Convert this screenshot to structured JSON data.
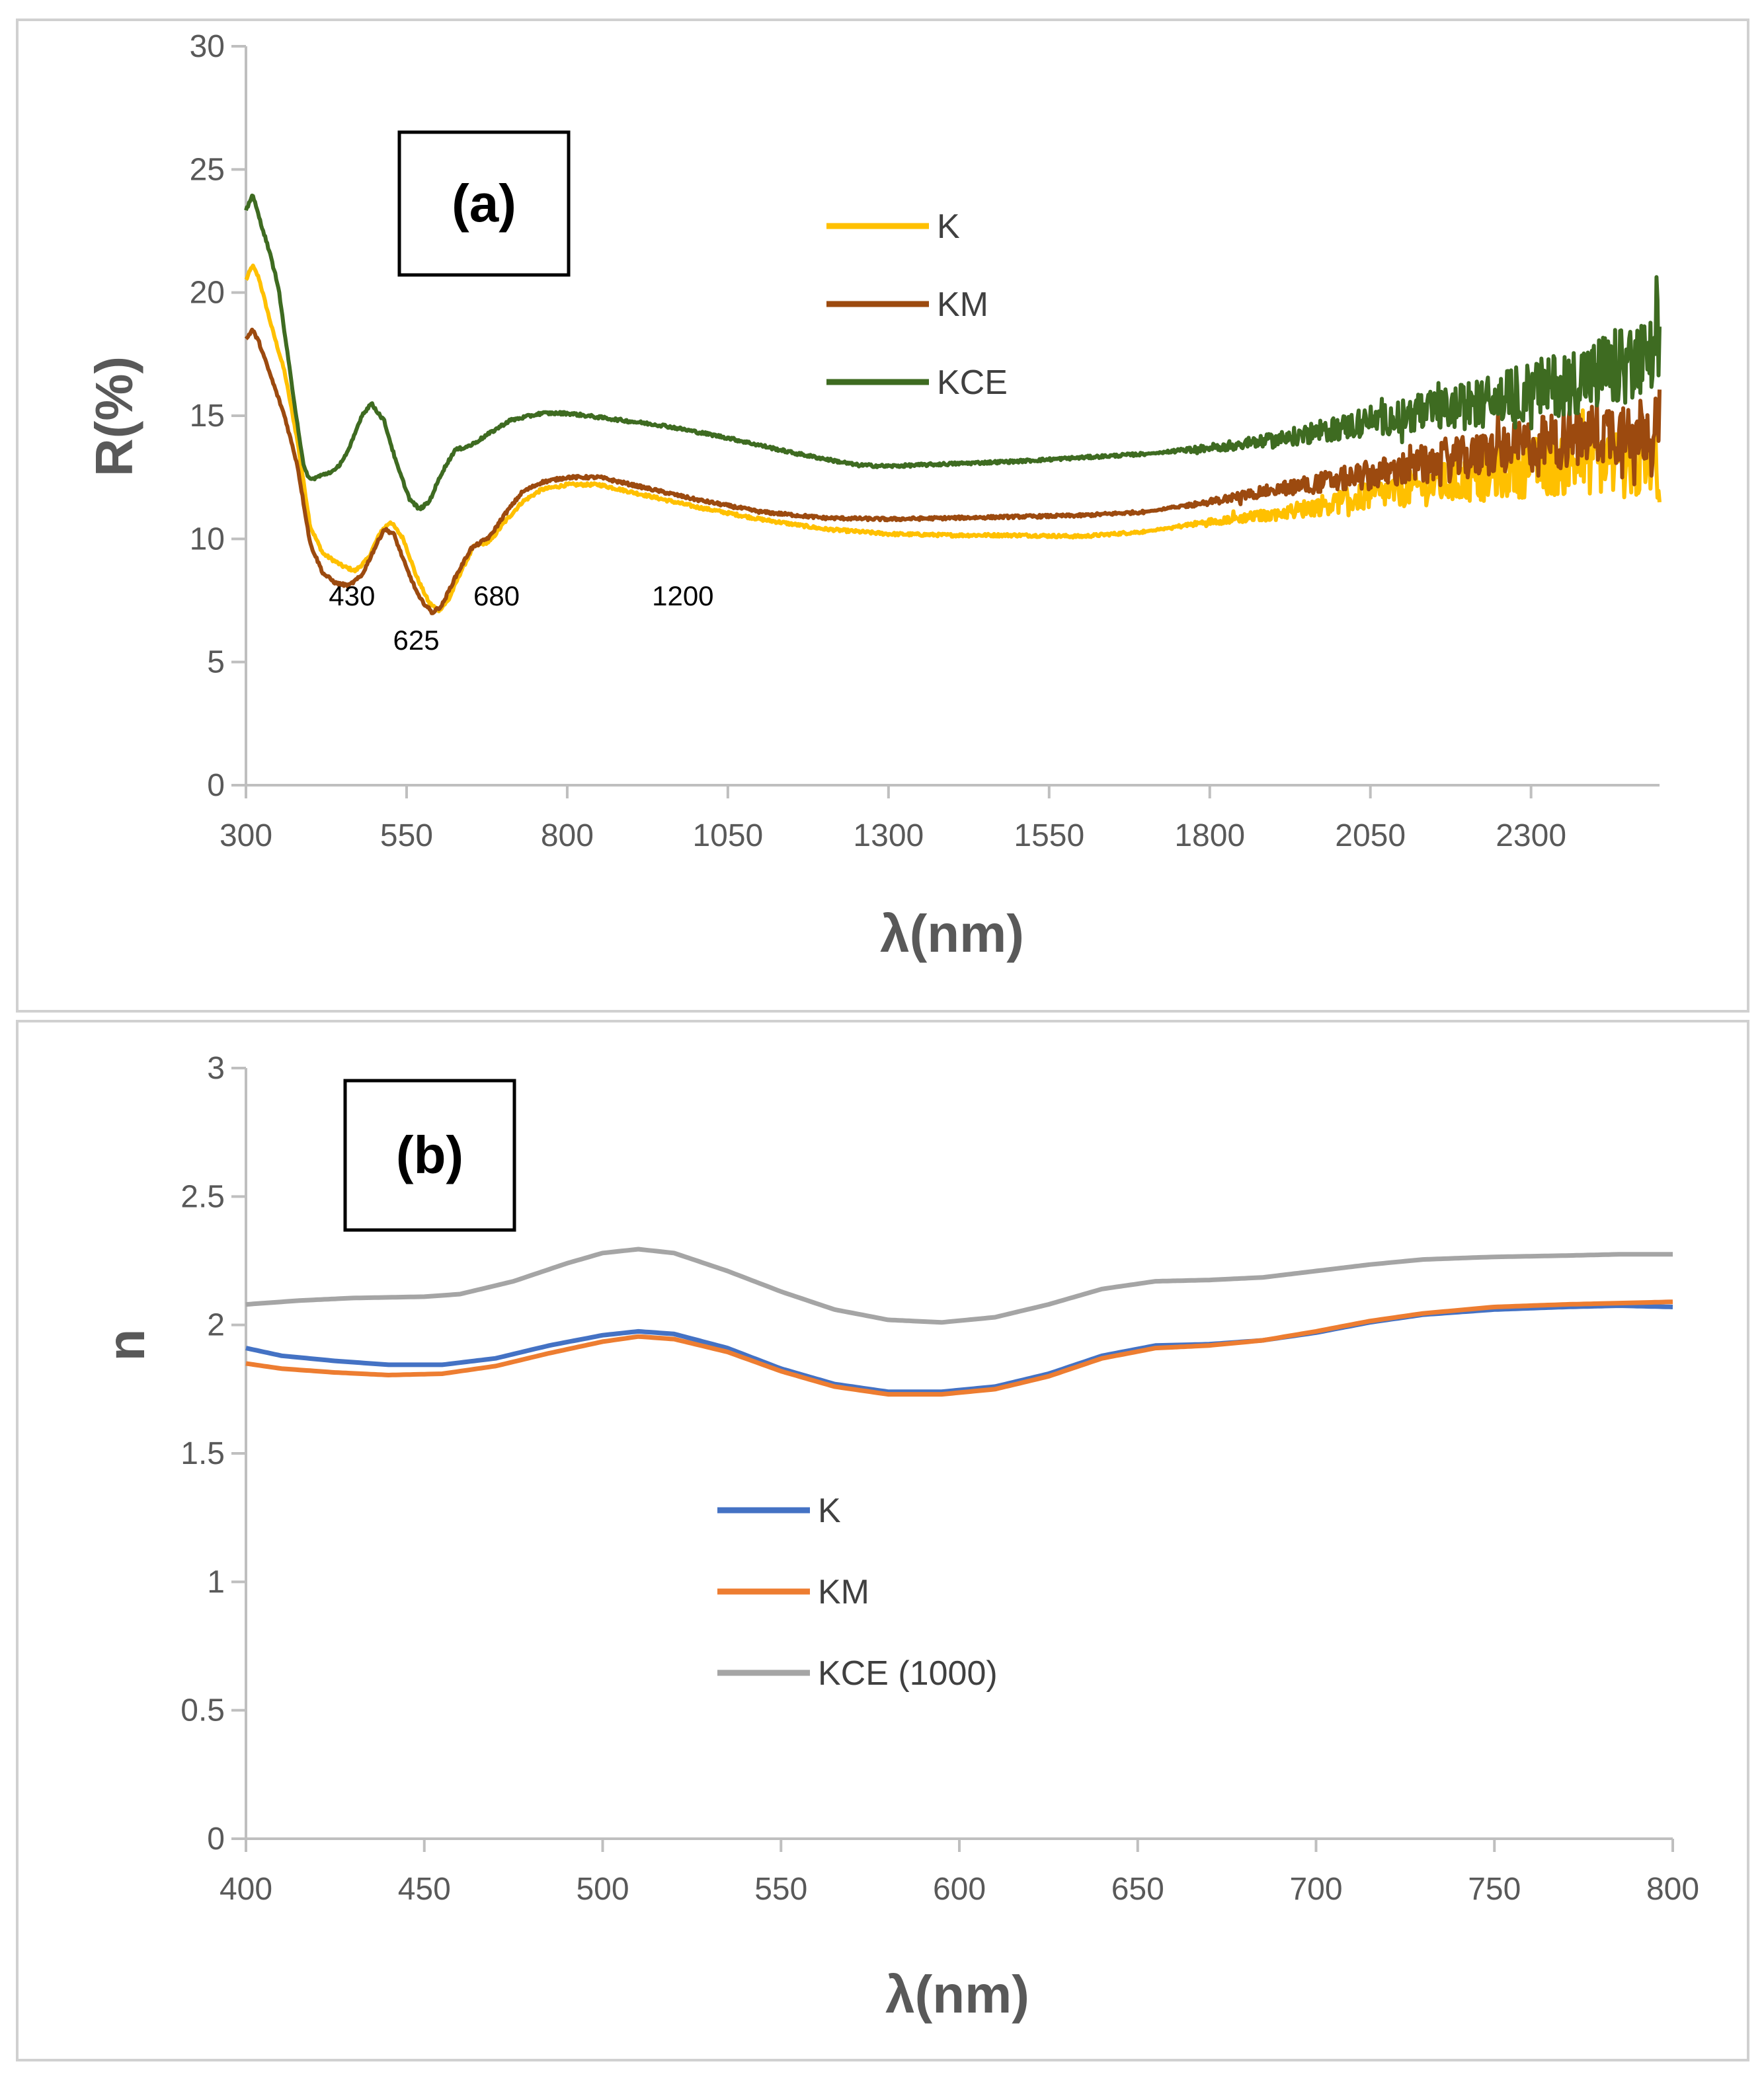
{
  "colors": {
    "K_a": "#FFC000",
    "KM_a": "#9C4A0F",
    "KCE_a": "#3E6B21",
    "K_b": "#4472C4",
    "KM_b": "#ED7D31",
    "KCE_b": "#A5A5A5",
    "axis": "#BFBFBF",
    "text": "#595959"
  },
  "chart_data": [
    {
      "type": "line",
      "panel_label": "(a)",
      "xlabel": "λ(nm)",
      "ylabel": "R(%)",
      "xlim": [
        300,
        2500
      ],
      "ylim": [
        0,
        30
      ],
      "xticks": [
        300,
        550,
        800,
        1050,
        1300,
        1550,
        1800,
        2050,
        2300
      ],
      "yticks": [
        0,
        5,
        10,
        15,
        20,
        25,
        30
      ],
      "grid": false,
      "legend_position": "top-right",
      "annotations": [
        {
          "text": "430",
          "x": 465,
          "y": 7.3
        },
        {
          "text": "625",
          "x": 565,
          "y": 5.5
        },
        {
          "text": "680",
          "x": 690,
          "y": 7.3
        },
        {
          "text": "1200",
          "x": 980,
          "y": 7.3
        }
      ],
      "series": [
        {
          "name": "K",
          "color": "#FFC000",
          "noise": [
            [
              1700,
              0
            ],
            [
              1900,
              0.25
            ],
            [
              2100,
              0.7
            ],
            [
              2300,
              1.2
            ],
            [
              2500,
              1.6
            ]
          ],
          "points": [
            [
              300,
              20.5
            ],
            [
              310,
              21.1
            ],
            [
              320,
              20.6
            ],
            [
              340,
              18.6
            ],
            [
              360,
              16.8
            ],
            [
              380,
              14.0
            ],
            [
              400,
              10.5
            ],
            [
              420,
              9.4
            ],
            [
              450,
              8.9
            ],
            [
              470,
              8.7
            ],
            [
              490,
              9.2
            ],
            [
              510,
              10.3
            ],
            [
              525,
              10.7
            ],
            [
              545,
              10.0
            ],
            [
              565,
              8.5
            ],
            [
              585,
              7.4
            ],
            [
              600,
              7.1
            ],
            [
              615,
              7.5
            ],
            [
              635,
              8.7
            ],
            [
              655,
              9.7
            ],
            [
              680,
              9.9
            ],
            [
              700,
              10.6
            ],
            [
              730,
              11.5
            ],
            [
              760,
              12.0
            ],
            [
              800,
              12.2
            ],
            [
              850,
              12.2
            ],
            [
              900,
              11.9
            ],
            [
              1000,
              11.3
            ],
            [
              1100,
              10.8
            ],
            [
              1200,
              10.4
            ],
            [
              1300,
              10.2
            ],
            [
              1400,
              10.15
            ],
            [
              1500,
              10.15
            ],
            [
              1600,
              10.1
            ],
            [
              1700,
              10.3
            ],
            [
              1800,
              10.7
            ],
            [
              1900,
              11.0
            ],
            [
              2000,
              11.5
            ],
            [
              2100,
              12.0
            ],
            [
              2200,
              12.4
            ],
            [
              2300,
              12.9
            ],
            [
              2400,
              13.2
            ],
            [
              2500,
              13.0
            ]
          ]
        },
        {
          "name": "KM",
          "color": "#9C4A0F",
          "noise": [
            [
              1700,
              0
            ],
            [
              1900,
              0.25
            ],
            [
              2100,
              0.7
            ],
            [
              2300,
              1.1
            ],
            [
              2500,
              1.5
            ]
          ],
          "points": [
            [
              300,
              18.1
            ],
            [
              310,
              18.5
            ],
            [
              320,
              18.0
            ],
            [
              340,
              16.5
            ],
            [
              360,
              15.0
            ],
            [
              380,
              13.0
            ],
            [
              400,
              9.8
            ],
            [
              420,
              8.6
            ],
            [
              440,
              8.2
            ],
            [
              460,
              8.1
            ],
            [
              480,
              8.5
            ],
            [
              500,
              9.6
            ],
            [
              515,
              10.4
            ],
            [
              530,
              10.2
            ],
            [
              550,
              8.8
            ],
            [
              570,
              7.6
            ],
            [
              590,
              7.0
            ],
            [
              605,
              7.3
            ],
            [
              625,
              8.4
            ],
            [
              650,
              9.6
            ],
            [
              680,
              10.1
            ],
            [
              700,
              10.9
            ],
            [
              730,
              11.9
            ],
            [
              760,
              12.3
            ],
            [
              800,
              12.5
            ],
            [
              850,
              12.5
            ],
            [
              900,
              12.2
            ],
            [
              1000,
              11.6
            ],
            [
              1100,
              11.1
            ],
            [
              1200,
              10.85
            ],
            [
              1300,
              10.8
            ],
            [
              1400,
              10.85
            ],
            [
              1500,
              10.9
            ],
            [
              1600,
              10.95
            ],
            [
              1700,
              11.1
            ],
            [
              1800,
              11.5
            ],
            [
              1900,
              12.0
            ],
            [
              2000,
              12.4
            ],
            [
              2100,
              12.8
            ],
            [
              2200,
              13.3
            ],
            [
              2300,
              13.8
            ],
            [
              2400,
              14.3
            ],
            [
              2500,
              14.6
            ]
          ]
        },
        {
          "name": "KCE",
          "color": "#3E6B21",
          "noise": [
            [
              1700,
              0
            ],
            [
              1900,
              0.3
            ],
            [
              2100,
              0.7
            ],
            [
              2300,
              1.2
            ],
            [
              2500,
              1.8
            ]
          ],
          "points": [
            [
              300,
              23.3
            ],
            [
              310,
              24.0
            ],
            [
              320,
              23.1
            ],
            [
              335,
              21.8
            ],
            [
              350,
              20.3
            ],
            [
              370,
              16.5
            ],
            [
              390,
              12.9
            ],
            [
              400,
              12.4
            ],
            [
              420,
              12.6
            ],
            [
              440,
              12.8
            ],
            [
              460,
              13.6
            ],
            [
              480,
              15.0
            ],
            [
              495,
              15.5
            ],
            [
              515,
              14.8
            ],
            [
              535,
              13.0
            ],
            [
              555,
              11.6
            ],
            [
              570,
              11.2
            ],
            [
              585,
              11.5
            ],
            [
              605,
              12.7
            ],
            [
              625,
              13.6
            ],
            [
              650,
              13.8
            ],
            [
              680,
              14.3
            ],
            [
              710,
              14.8
            ],
            [
              760,
              15.1
            ],
            [
              800,
              15.1
            ],
            [
              860,
              14.9
            ],
            [
              950,
              14.6
            ],
            [
              1050,
              14.1
            ],
            [
              1150,
              13.5
            ],
            [
              1250,
              13.0
            ],
            [
              1300,
              12.95
            ],
            [
              1400,
              13.05
            ],
            [
              1500,
              13.15
            ],
            [
              1600,
              13.3
            ],
            [
              1700,
              13.45
            ],
            [
              1800,
              13.7
            ],
            [
              1900,
              14.0
            ],
            [
              2000,
              14.5
            ],
            [
              2100,
              15.0
            ],
            [
              2200,
              15.4
            ],
            [
              2300,
              16.0
            ],
            [
              2400,
              16.7
            ],
            [
              2500,
              17.3
            ]
          ]
        }
      ]
    },
    {
      "type": "line",
      "panel_label": "(b)",
      "xlabel": "λ(nm)",
      "ylabel": "n",
      "xlim": [
        400,
        800
      ],
      "ylim": [
        0,
        3
      ],
      "xticks": [
        400,
        450,
        500,
        550,
        600,
        650,
        700,
        750,
        800
      ],
      "yticks": [
        0,
        0.5,
        1,
        1.5,
        2,
        2.5,
        3
      ],
      "ytick_labels": [
        "0",
        "0.5",
        "1",
        "1.5",
        "2",
        "2.5",
        "3"
      ],
      "grid": false,
      "legend_position": "center",
      "series": [
        {
          "name": "K",
          "color": "#4472C4",
          "points": [
            [
              400,
              1.91
            ],
            [
              410,
              1.88
            ],
            [
              425,
              1.86
            ],
            [
              440,
              1.845
            ],
            [
              455,
              1.845
            ],
            [
              470,
              1.87
            ],
            [
              485,
              1.92
            ],
            [
              500,
              1.96
            ],
            [
              510,
              1.975
            ],
            [
              520,
              1.965
            ],
            [
              535,
              1.91
            ],
            [
              550,
              1.83
            ],
            [
              565,
              1.77
            ],
            [
              580,
              1.74
            ],
            [
              595,
              1.74
            ],
            [
              610,
              1.76
            ],
            [
              625,
              1.81
            ],
            [
              640,
              1.88
            ],
            [
              655,
              1.92
            ],
            [
              670,
              1.925
            ],
            [
              685,
              1.94
            ],
            [
              700,
              1.97
            ],
            [
              715,
              2.01
            ],
            [
              730,
              2.04
            ],
            [
              750,
              2.06
            ],
            [
              770,
              2.07
            ],
            [
              785,
              2.075
            ],
            [
              800,
              2.07
            ]
          ]
        },
        {
          "name": "KM",
          "color": "#ED7D31",
          "points": [
            [
              400,
              1.85
            ],
            [
              410,
              1.83
            ],
            [
              425,
              1.815
            ],
            [
              440,
              1.805
            ],
            [
              455,
              1.81
            ],
            [
              470,
              1.84
            ],
            [
              485,
              1.89
            ],
            [
              500,
              1.935
            ],
            [
              510,
              1.955
            ],
            [
              520,
              1.945
            ],
            [
              535,
              1.895
            ],
            [
              550,
              1.82
            ],
            [
              565,
              1.76
            ],
            [
              580,
              1.73
            ],
            [
              595,
              1.73
            ],
            [
              610,
              1.75
            ],
            [
              625,
              1.8
            ],
            [
              640,
              1.87
            ],
            [
              655,
              1.91
            ],
            [
              670,
              1.92
            ],
            [
              685,
              1.94
            ],
            [
              700,
              1.975
            ],
            [
              715,
              2.015
            ],
            [
              730,
              2.045
            ],
            [
              750,
              2.07
            ],
            [
              770,
              2.08
            ],
            [
              785,
              2.085
            ],
            [
              800,
              2.09
            ]
          ]
        },
        {
          "name": "KCE (1000)",
          "color": "#A5A5A5",
          "points": [
            [
              400,
              2.08
            ],
            [
              415,
              2.095
            ],
            [
              430,
              2.105
            ],
            [
              450,
              2.11
            ],
            [
              460,
              2.12
            ],
            [
              475,
              2.17
            ],
            [
              490,
              2.24
            ],
            [
              500,
              2.28
            ],
            [
              510,
              2.295
            ],
            [
              520,
              2.28
            ],
            [
              535,
              2.21
            ],
            [
              550,
              2.13
            ],
            [
              565,
              2.06
            ],
            [
              580,
              2.02
            ],
            [
              595,
              2.01
            ],
            [
              610,
              2.03
            ],
            [
              625,
              2.08
            ],
            [
              640,
              2.14
            ],
            [
              655,
              2.17
            ],
            [
              670,
              2.175
            ],
            [
              685,
              2.185
            ],
            [
              700,
              2.21
            ],
            [
              715,
              2.235
            ],
            [
              730,
              2.255
            ],
            [
              750,
              2.265
            ],
            [
              770,
              2.27
            ],
            [
              785,
              2.275
            ],
            [
              800,
              2.275
            ]
          ]
        }
      ]
    }
  ]
}
